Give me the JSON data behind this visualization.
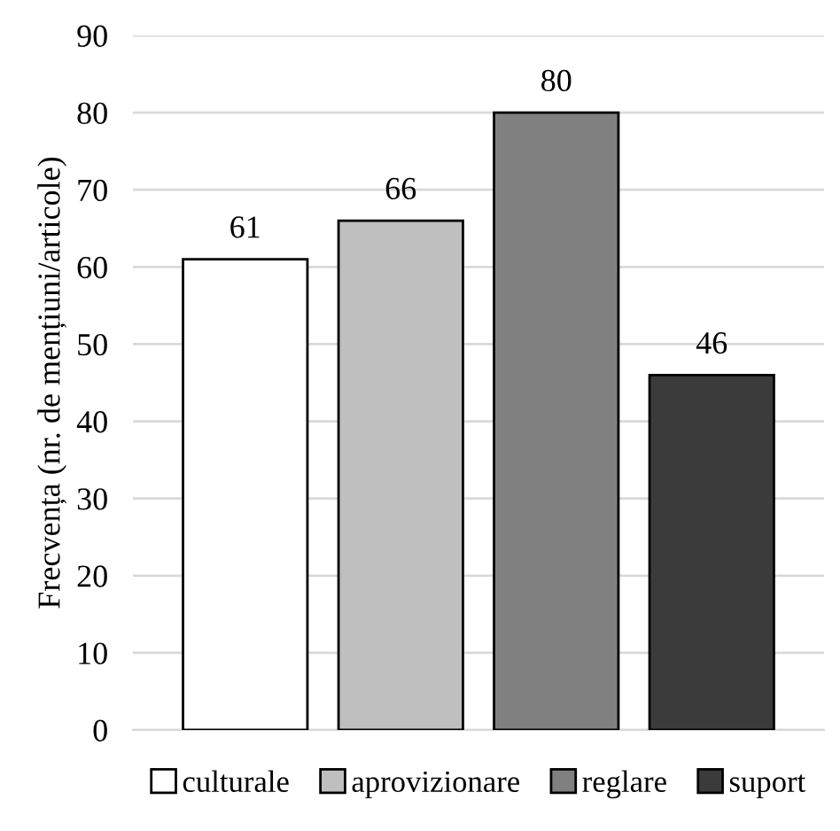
{
  "chart_data": {
    "type": "bar",
    "ylabel": "Frecvența (nr. de mențiuni/articole)",
    "categories": [
      null
    ],
    "series": [
      {
        "name": "culturale",
        "color": "#ffffff",
        "values": [
          61
        ]
      },
      {
        "name": "aprovizionare",
        "color": "#bfbfbf",
        "values": [
          66
        ]
      },
      {
        "name": "reglare",
        "color": "#808080",
        "values": [
          80
        ]
      },
      {
        "name": "suport",
        "color": "#3b3b3b",
        "values": [
          46
        ]
      }
    ],
    "ylim": [
      0,
      90
    ],
    "yticks": [
      0,
      10,
      20,
      30,
      40,
      50,
      60,
      70,
      80,
      90
    ],
    "grid": "y",
    "legend": "bottom",
    "data_labels": true
  }
}
